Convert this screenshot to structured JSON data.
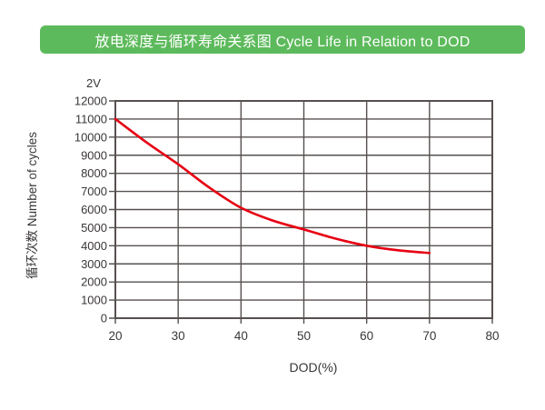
{
  "page": {
    "background": "#ffffff"
  },
  "header": {
    "title": "放电深度与循环寿命关系图 Cycle Life in Relation to DOD",
    "bg_color": "#5dba5c",
    "text_color": "#ffffff"
  },
  "chart_data": {
    "type": "line",
    "title": "放电深度与循环寿命关系图 Cycle Life in Relation to DOD",
    "annotation": "2V",
    "xlabel": "DOD(%)",
    "ylabel": "循环次数 Number of cycles",
    "series": [
      {
        "name": "2V",
        "x": [
          20,
          25,
          30,
          35,
          40,
          45,
          50,
          55,
          60,
          65,
          70
        ],
        "values": [
          11000,
          9700,
          8500,
          7200,
          6100,
          5400,
          4900,
          4400,
          4000,
          3750,
          3600
        ],
        "color": "#e60012"
      }
    ],
    "xlim": [
      20,
      80
    ],
    "ylim": [
      0,
      12000
    ],
    "x_ticks": [
      20,
      30,
      40,
      50,
      60,
      70,
      80
    ],
    "y_ticks": [
      0,
      1000,
      2000,
      3000,
      4000,
      5000,
      6000,
      7000,
      8000,
      9000,
      10000,
      11000,
      12000
    ],
    "grid": true,
    "legend_position": "none",
    "axis_color": "#56504f",
    "tick_label_color": "#3a3637"
  }
}
